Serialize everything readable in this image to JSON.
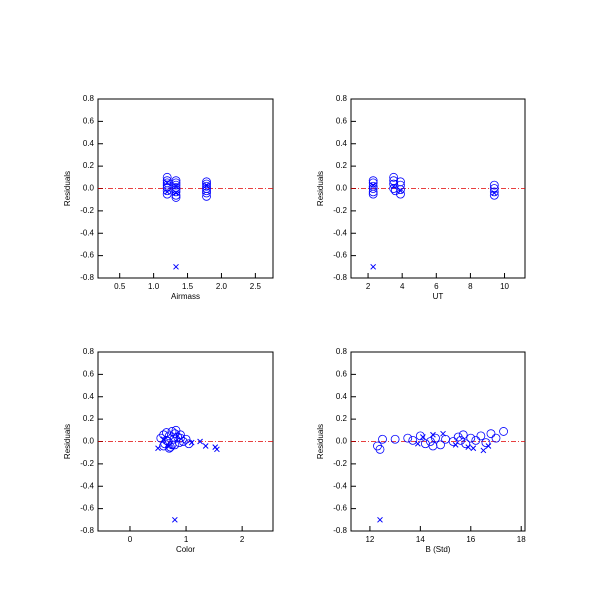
{
  "chart_data": [
    {
      "type": "scatter",
      "xlabel": "Airmass",
      "ylabel": "Residuals",
      "xlim": [
        0.18,
        2.76
      ],
      "ylim": [
        -0.8,
        0.8
      ],
      "xticks": [
        0.5,
        {
          "value": 1,
          "label": "1.0"
        },
        1.5,
        {
          "value": 2,
          "label": "2.0"
        },
        2.5
      ],
      "yticks": [
        -0.8,
        -0.6,
        -0.4,
        -0.2,
        {
          "value": 0,
          "label": "0.0"
        },
        0.2,
        0.4,
        0.6,
        0.8
      ],
      "reference_line": 0,
      "reference_color": "#e00000",
      "series": [
        {
          "marker": "o",
          "color": "#0000ff",
          "x": [
            1.2,
            1.2,
            1.2,
            1.2,
            1.2,
            1.2,
            1.2,
            1.33,
            1.33,
            1.33,
            1.33,
            1.33,
            1.33,
            1.33,
            1.33,
            1.78,
            1.78,
            1.78,
            1.78,
            1.78,
            1.78,
            1.78
          ],
          "values": [
            0.1,
            0.07,
            0.05,
            0.03,
            0.01,
            -0.02,
            -0.05,
            0.07,
            0.05,
            0.03,
            0.01,
            -0.01,
            -0.03,
            -0.06,
            -0.08,
            0.06,
            0.04,
            0.02,
            0.0,
            -0.02,
            -0.04,
            -0.07
          ]
        },
        {
          "marker": "x",
          "color": "#0000ff",
          "x": [
            1.2,
            1.2,
            1.33,
            1.33,
            1.78,
            1.33
          ],
          "values": [
            0.05,
            -0.03,
            0.02,
            -0.04,
            0.03,
            -0.7
          ]
        }
      ]
    },
    {
      "type": "scatter",
      "xlabel": "UT",
      "ylabel": "Residuals",
      "xlim": [
        1.0,
        11.2
      ],
      "ylim": [
        -0.8,
        0.8
      ],
      "xticks": [
        2,
        4,
        6,
        8,
        10
      ],
      "yticks": [
        -0.8,
        -0.6,
        -0.4,
        -0.2,
        {
          "value": 0,
          "label": "0.0"
        },
        0.2,
        0.4,
        0.6,
        0.8
      ],
      "reference_line": 0,
      "reference_color": "#e00000",
      "series": [
        {
          "marker": "o",
          "color": "#0000ff",
          "x": [
            2.3,
            2.3,
            2.3,
            2.3,
            2.3,
            2.3,
            3.5,
            3.5,
            3.5,
            3.5,
            3.6,
            3.9,
            3.9,
            3.9,
            3.9,
            9.4,
            9.4,
            9.4,
            9.4
          ],
          "values": [
            0.07,
            0.05,
            0.02,
            0.0,
            -0.03,
            -0.05,
            0.1,
            0.07,
            0.04,
            0.0,
            -0.02,
            0.06,
            0.03,
            -0.01,
            -0.05,
            0.03,
            0.0,
            -0.03,
            -0.06
          ]
        },
        {
          "marker": "x",
          "color": "#0000ff",
          "x": [
            2.3,
            3.5,
            3.9,
            9.4,
            2.3
          ],
          "values": [
            0.03,
            0.02,
            -0.02,
            -0.04,
            -0.7
          ]
        }
      ]
    },
    {
      "type": "scatter",
      "xlabel": "Color",
      "ylabel": "Residuals",
      "xlim": [
        -0.57,
        2.55
      ],
      "ylim": [
        -0.8,
        0.8
      ],
      "xticks": [
        0,
        1,
        2
      ],
      "yticks": [
        -0.8,
        -0.6,
        -0.4,
        -0.2,
        {
          "value": 0,
          "label": "0.0"
        },
        0.2,
        0.4,
        0.6,
        0.8
      ],
      "reference_line": 0,
      "reference_color": "#e00000",
      "series": [
        {
          "marker": "o",
          "color": "#0000ff",
          "x": [
            0.55,
            0.6,
            0.62,
            0.65,
            0.68,
            0.7,
            0.72,
            0.75,
            0.78,
            0.8,
            0.82,
            0.85,
            0.88,
            0.9,
            0.95,
            1.0,
            1.05,
            0.6,
            0.7,
            0.8,
            0.9,
            0.65,
            0.75
          ],
          "values": [
            0.03,
            0.06,
            -0.02,
            0.08,
            0.0,
            0.05,
            -0.05,
            0.09,
            0.02,
            -0.03,
            0.1,
            0.04,
            -0.01,
            0.06,
            0.0,
            0.02,
            -0.02,
            -0.04,
            -0.06,
            0.07,
            0.03,
            0.01,
            -0.03
          ]
        },
        {
          "marker": "x",
          "color": "#0000ff",
          "x": [
            0.5,
            0.6,
            0.7,
            0.85,
            1.1,
            1.25,
            1.35,
            1.52,
            1.55,
            0.8
          ],
          "values": [
            -0.06,
            0.02,
            -0.04,
            0.05,
            -0.01,
            0.0,
            -0.04,
            -0.05,
            -0.07,
            -0.7
          ]
        }
      ]
    },
    {
      "type": "scatter",
      "xlabel": "B (Std)",
      "ylabel": "Residuals",
      "xlim": [
        11.25,
        18.15
      ],
      "ylim": [
        -0.8,
        0.8
      ],
      "xticks": [
        12,
        14,
        16,
        18
      ],
      "yticks": [
        -0.8,
        -0.6,
        -0.4,
        -0.2,
        {
          "value": 0,
          "label": "0.0"
        },
        0.2,
        0.4,
        0.6,
        0.8
      ],
      "reference_line": 0,
      "reference_color": "#e00000",
      "series": [
        {
          "marker": "o",
          "color": "#0000ff",
          "x": [
            12.3,
            12.4,
            12.5,
            13.0,
            13.5,
            13.7,
            14.0,
            14.2,
            14.4,
            14.6,
            14.8,
            15.0,
            15.3,
            15.5,
            15.7,
            15.8,
            16.0,
            16.2,
            16.4,
            16.6,
            16.8,
            17.0,
            17.3,
            15.6,
            14.5
          ],
          "values": [
            -0.04,
            -0.07,
            0.02,
            0.02,
            0.03,
            0.01,
            0.05,
            -0.02,
            0.0,
            0.03,
            -0.03,
            0.02,
            0.0,
            0.04,
            0.06,
            -0.02,
            0.03,
            0.01,
            0.05,
            -0.01,
            0.07,
            0.03,
            0.09,
            0.01,
            -0.04
          ]
        },
        {
          "marker": "x",
          "color": "#0000ff",
          "x": [
            14.1,
            14.5,
            14.9,
            15.4,
            15.9,
            16.1,
            16.5,
            16.7,
            13.9,
            12.4
          ],
          "values": [
            0.04,
            0.06,
            0.07,
            -0.03,
            -0.05,
            -0.06,
            -0.08,
            -0.04,
            -0.02,
            -0.7
          ]
        }
      ]
    }
  ]
}
